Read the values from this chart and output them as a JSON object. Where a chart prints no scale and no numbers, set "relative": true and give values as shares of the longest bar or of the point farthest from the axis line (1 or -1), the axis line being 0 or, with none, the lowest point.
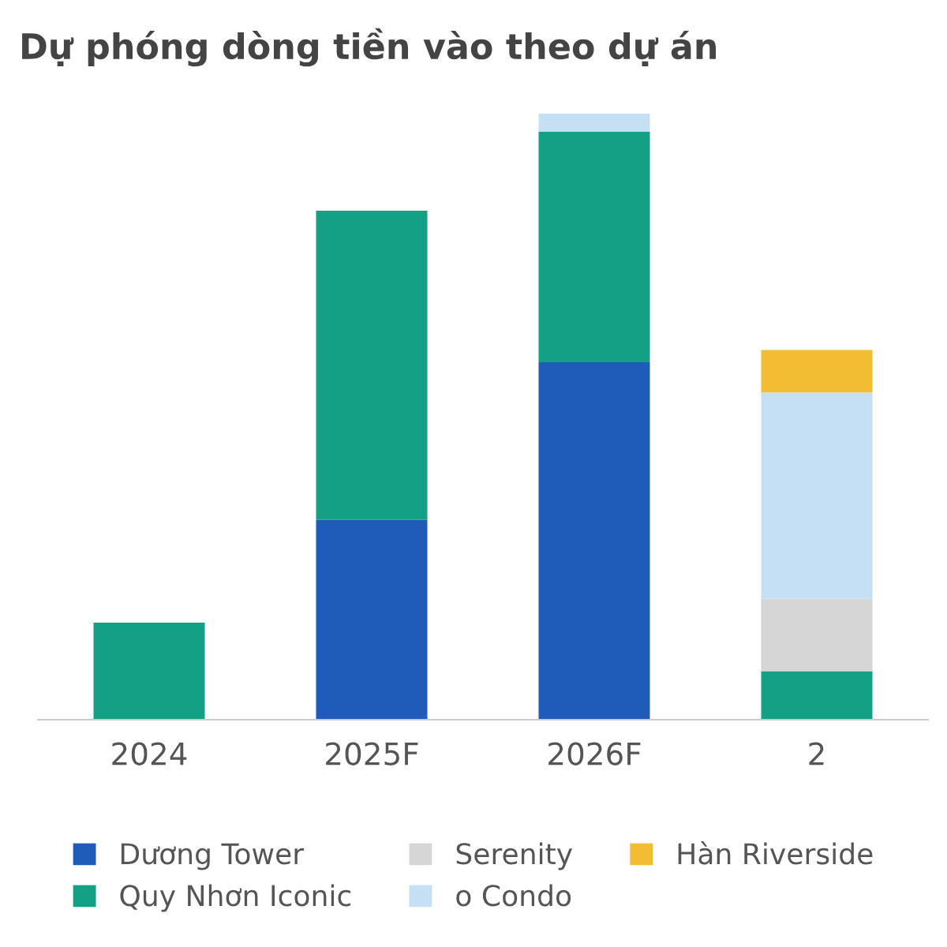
{
  "chart_data": {
    "type": "bar",
    "title": "Dự phóng dòng tiền vào theo dự án",
    "relative": true,
    "stacked": true,
    "legend": "bottom",
    "grid": false,
    "categories": [
      "2024",
      "2025F",
      "2026F",
      "2"
    ],
    "series": [
      {
        "name": "Dương Tower",
        "color": "#1f5bb8",
        "values": [
          0,
          0.33,
          0.59,
          0
        ]
      },
      {
        "name": "Quy Nhơn Iconic",
        "color": "#14a085",
        "values": [
          0.16,
          0.51,
          0.38,
          0.08
        ]
      },
      {
        "name": "Serenity",
        "color": "#d6d6d6",
        "values": [
          0,
          0,
          0,
          0.12
        ]
      },
      {
        "name": "o Condo",
        "color": "#c5dff5",
        "values": [
          0,
          0,
          0.03,
          0.34
        ]
      },
      {
        "name": "Hàn Riverside",
        "color": "#f2bc33",
        "values": [
          0,
          0,
          0,
          0.07
        ]
      }
    ]
  }
}
